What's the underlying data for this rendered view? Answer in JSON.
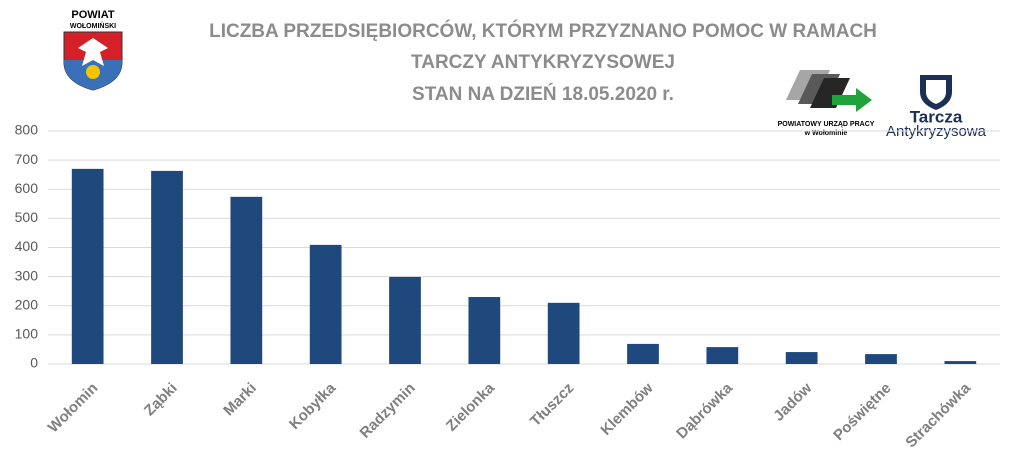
{
  "chart_data": {
    "type": "bar",
    "title": [
      "LICZBA PRZEDSIĘBIORCÓW, KTÓRYM PRZYZNANO POMOC W RAMACH",
      "TARCZY ANTYKRYZYSOWEJ"
    ],
    "subtitle": "STAN NA DZIEŃ 18.05.2020 r.",
    "logos": {
      "powiat": "POWIAT",
      "powiat_name": "WOŁOMIŃSKI",
      "pup": "POWIATOWY URZĄD PRACY",
      "pup_place": "w Wołominie",
      "tarcza": "Tarcza",
      "tarcza_sub": "Antykryzysowa"
    },
    "categories": [
      "Wołomin",
      "Ząbki",
      "Marki",
      "Kobyłka",
      "Radzymin",
      "Zielonka",
      "Tłuszcz",
      "Klembów",
      "Dąbrówka",
      "Jadów",
      "Poświętne",
      "Strachówka"
    ],
    "values": [
      670,
      663,
      574,
      409,
      299,
      230,
      210,
      69,
      58,
      41,
      34,
      10
    ],
    "color": "#1f497d",
    "ylim": [
      0,
      800
    ],
    "yticks": [
      0,
      100,
      200,
      300,
      400,
      500,
      600,
      700,
      800
    ],
    "grid": true
  }
}
